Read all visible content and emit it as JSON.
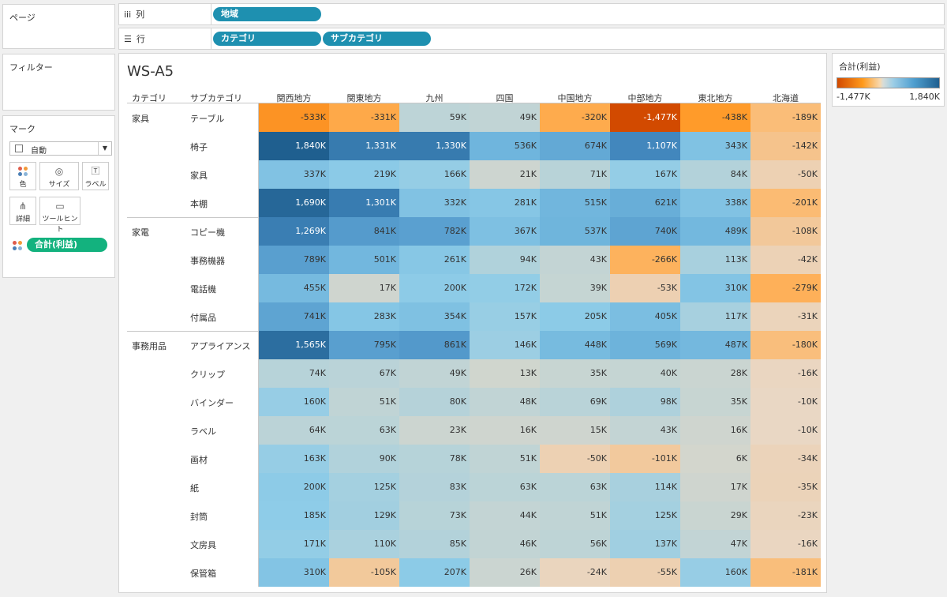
{
  "left_panels": {
    "pages_title": "ページ",
    "filters_title": "フィルター",
    "marks_title": "マーク",
    "mark_type": "自動",
    "buttons": [
      "色",
      "サイズ",
      "ラベル",
      "詳細",
      "ツールヒント"
    ],
    "measure_pill": "合計(利益)"
  },
  "shelves": {
    "columns_label": "列",
    "columns_icon": "iii",
    "columns_pills": [
      "地域"
    ],
    "rows_label": "行",
    "rows_icon": "☰",
    "rows_pills": [
      "カテゴリ",
      "サブカテゴリ"
    ]
  },
  "view": {
    "title": "WS-A5",
    "category_header": "カテゴリ",
    "subcategory_header": "サブカテゴリ"
  },
  "legend": {
    "title": "合計(利益)",
    "min_label": "-1,477K",
    "max_label": "1,840K",
    "colors": {
      "neg": "#d24a00",
      "mid": "#f0f0f0",
      "pos": "#1f5f8f"
    }
  },
  "chart_data": {
    "type": "heatmap",
    "title": "WS-A5",
    "columns": [
      "関西地方",
      "関東地方",
      "九州",
      "四国",
      "中国地方",
      "中部地方",
      "東北地方",
      "北海道"
    ],
    "groups": [
      {
        "category": "家具",
        "rows": [
          {
            "name": "テーブル",
            "values": [
              -533,
              -331,
              59,
              49,
              -320,
              -1477,
              -438,
              -189
            ]
          },
          {
            "name": "椅子",
            "values": [
              1840,
              1331,
              1330,
              536,
              674,
              1107,
              343,
              -142
            ]
          },
          {
            "name": "家具",
            "values": [
              337,
              219,
              166,
              21,
              71,
              167,
              84,
              -50
            ]
          },
          {
            "name": "本棚",
            "values": [
              1690,
              1301,
              332,
              281,
              515,
              621,
              338,
              -201
            ]
          }
        ]
      },
      {
        "category": "家電",
        "rows": [
          {
            "name": "コピー機",
            "values": [
              1269,
              841,
              782,
              367,
              537,
              740,
              489,
              -108
            ]
          },
          {
            "name": "事務機器",
            "values": [
              789,
              501,
              261,
              94,
              43,
              -266,
              113,
              -42
            ]
          },
          {
            "name": "電話機",
            "values": [
              455,
              17,
              200,
              172,
              39,
              -53,
              310,
              -279
            ]
          },
          {
            "name": "付属品",
            "values": [
              741,
              283,
              354,
              157,
              205,
              405,
              117,
              -31
            ]
          }
        ]
      },
      {
        "category": "事務用品",
        "rows": [
          {
            "name": "アプライアンス",
            "values": [
              1565,
              795,
              861,
              146,
              448,
              569,
              487,
              -180
            ]
          },
          {
            "name": "クリップ",
            "values": [
              74,
              67,
              49,
              13,
              35,
              40,
              28,
              -16
            ]
          },
          {
            "name": "バインダー",
            "values": [
              160,
              51,
              80,
              48,
              69,
              98,
              35,
              -10
            ]
          },
          {
            "name": "ラベル",
            "values": [
              64,
              63,
              23,
              16,
              15,
              43,
              16,
              -10
            ]
          },
          {
            "name": "画材",
            "values": [
              163,
              90,
              78,
              51,
              -50,
              -101,
              6,
              -34
            ]
          },
          {
            "name": "紙",
            "values": [
              200,
              125,
              83,
              63,
              63,
              114,
              17,
              -35
            ]
          },
          {
            "name": "封筒",
            "values": [
              185,
              129,
              73,
              44,
              51,
              125,
              29,
              -23
            ]
          },
          {
            "name": "文房具",
            "values": [
              171,
              110,
              85,
              46,
              56,
              137,
              47,
              -16
            ]
          },
          {
            "name": "保管箱",
            "values": [
              310,
              -105,
              207,
              26,
              -24,
              -55,
              160,
              -181
            ]
          }
        ]
      }
    ],
    "unit_suffix": "K",
    "color_range": [
      -1477,
      1840
    ]
  }
}
